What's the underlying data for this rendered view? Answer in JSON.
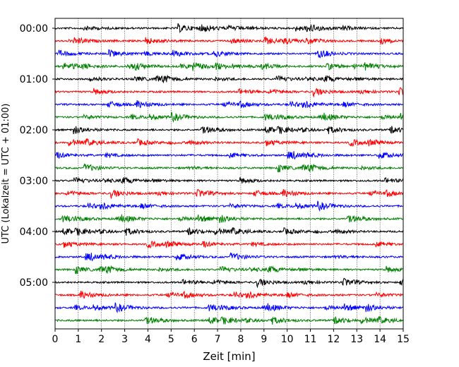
{
  "chart_data": {
    "type": "line",
    "title": "",
    "xlabel": "Zeit  [min]",
    "ylabel": "UTC (Lokalzeit = UTC + 01:00)",
    "xlim": [
      0,
      15
    ],
    "x_ticks": [
      0,
      1,
      2,
      3,
      4,
      5,
      6,
      7,
      8,
      9,
      10,
      11,
      12,
      13,
      14,
      15
    ],
    "y_tick_labels": [
      "00:00",
      "01:00",
      "02:00",
      "03:00",
      "04:00",
      "05:00"
    ],
    "trace_interval_minutes": 15,
    "trace_count": 24,
    "trace_colors": [
      "#000000",
      "#ff0000",
      "#0000ff",
      "#008000"
    ],
    "grid": "vertical dotted lines at each minute"
  }
}
